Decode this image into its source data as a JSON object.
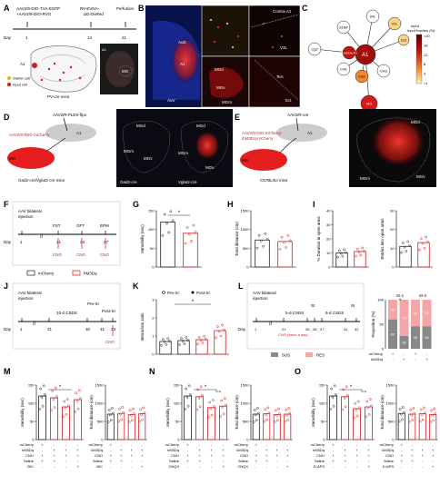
{
  "panels": {
    "A": {
      "label": "A",
      "virus1": "AAV2/9-DIO-TVA-EGFP",
      "virus2": "+AAV2/9-DIO-RVG",
      "virus3": "RV-EVNA-",
      "virus4": "ΔG-DsRed",
      "perfusion": "Perfusion",
      "day_label": "Day",
      "d1": "1",
      "d14": "14",
      "d21": "21",
      "mice": "PV-cre mice",
      "legend_starter": "Starter cell",
      "legend_input": "Input cell",
      "a1": "A1",
      "mg": "MG"
    },
    "B": {
      "label": "B",
      "aud": "AuD",
      "a1": "A1",
      "auv": "AuV",
      "contra": "Contra-A1",
      "v2l": "V2L",
      "tea": "TeA",
      "ect": "Ect",
      "mgd": "MGd",
      "mgv": "MGv",
      "mgm": "MGm"
    },
    "C": {
      "label": "C",
      "center": "A1",
      "nodes": [
        "S1BF",
        "M1",
        "V2L",
        "Ect",
        "Cg2",
        "Contra-A1",
        "CA1",
        "CA2",
        "CA3",
        "MG"
      ],
      "cbar_title": "Input fraction (%)",
      "cbar_ticks": [
        ">20",
        "16",
        "12",
        "8",
        "4",
        "<1"
      ]
    },
    "D": {
      "label": "D",
      "virus_top": "AAV2/R-FLEX-flpo",
      "virus_left": "AAV2/9-fDIO-mCherry",
      "a1": "A1",
      "mg": "MG",
      "mice": "Gad2-cre/Vglut2-cre mice",
      "img1": "Gad2-cre",
      "img2": "Vglut2-cre",
      "mgd": "MGd",
      "mgm": "MGm",
      "mgv": "MGv"
    },
    "E": {
      "label": "E",
      "virus_top": "AAV2/R-cre",
      "virus_left1": "AAV2/9-DIO-mCherry",
      "virus_left2": "/hM3Dq-mCherry",
      "a1": "A1",
      "mg": "MG",
      "mice": "C57BL/6J mice",
      "mgd": "MGd",
      "mgm": "MGm",
      "mgv": "MGv"
    },
    "F": {
      "label": "F",
      "title": "AAV bilateral injection",
      "tests": [
        "FST",
        "OFT",
        "EPM"
      ],
      "days": [
        "1",
        "21",
        "24",
        "27"
      ],
      "day": "Day",
      "cno": "CNO",
      "legend": [
        "mCherry",
        "hM3Dq"
      ]
    },
    "G": {
      "label": "G",
      "ylabel": "Immobility (sec)",
      "star": "*",
      "ticks": [
        "0",
        "50",
        "100",
        "150"
      ]
    },
    "H": {
      "label": "H",
      "ylabel": "Total distance (cm)",
      "ticks": [
        "0",
        "500",
        "1000",
        "1500"
      ]
    },
    "I": {
      "label": "I",
      "ylabel1": "% Duration in open arms",
      "ylabel2": "Entries into open arms",
      "ticks1": [
        "0",
        "10",
        "20",
        "30",
        "40"
      ],
      "ticks2": [
        "0",
        "10",
        "20",
        "30"
      ]
    },
    "J": {
      "label": "J",
      "title": "AAV bilateral injection",
      "steps": [
        "10-d CSDS",
        "Pre-SI",
        "Post-SI"
      ],
      "days": [
        "1",
        "21",
        "30",
        "31",
        "33"
      ],
      "day": "Day",
      "cno": "CNO"
    },
    "K": {
      "label": "K",
      "legend": [
        "Pre-SI",
        "Post-SI"
      ],
      "ylabel": "Interaction ratio",
      "star": "*",
      "ticks": [
        "0",
        "1",
        "2",
        "3"
      ]
    },
    "L": {
      "label": "L",
      "title": "AAV bilateral injection",
      "steps": [
        "5-d CSDS",
        "SI",
        "5-d CSDS",
        "SI"
      ],
      "cno": "CNO (twice a day)",
      "days": [
        "1",
        "21",
        "25",
        "26",
        "27",
        "31",
        "32"
      ],
      "day": "Day",
      "legend": [
        "SUS",
        "RES"
      ],
      "ylabel": "Proportion (%)",
      "groups": [
        "SI-1",
        "SI-2"
      ],
      "rows": [
        "mCherry",
        "hM3Dq"
      ],
      "star": "*"
    },
    "M": {
      "label": "M",
      "ylabel1": "Immobility (sec)",
      "ylabel2": "Total distance (cm)",
      "rows": [
        "mCherry",
        "hM3Dq",
        "CNO",
        "Saline",
        "BIC"
      ]
    },
    "N": {
      "label": "N",
      "ylabel1": "Immobility (sec)",
      "ylabel2": "Total distance (cm)",
      "rows": [
        "mCherry",
        "hM3Dq",
        "CNO",
        "Saline",
        "CNQX"
      ],
      "ns": "n.s."
    },
    "O": {
      "label": "O",
      "ylabel1": "Immobility (sec)",
      "ylabel2": "Total distance (cm)",
      "rows": [
        "mCherry",
        "hM3Dq",
        "CNO",
        "Saline",
        "D-APS"
      ],
      "ns": "n.s."
    }
  },
  "chart_data": [
    {
      "panel": "G",
      "type": "bar",
      "categories": [
        "mCherry",
        "hM3Dq"
      ],
      "values": [
        120,
        90
      ],
      "ylim": [
        0,
        150
      ],
      "ylabel": "Immobility (sec)"
    },
    {
      "panel": "H",
      "type": "bar",
      "categories": [
        "mCherry",
        "hM3Dq"
      ],
      "values": [
        720,
        680
      ],
      "ylim": [
        0,
        1500
      ],
      "ylabel": "Total distance (cm)"
    },
    {
      "panel": "I1",
      "type": "bar",
      "categories": [
        "mCherry",
        "hM3Dq"
      ],
      "values": [
        10,
        11
      ],
      "ylim": [
        0,
        40
      ],
      "ylabel": "% Duration in open arms"
    },
    {
      "panel": "I2",
      "type": "bar",
      "categories": [
        "mCherry",
        "hM3Dq"
      ],
      "values": [
        11,
        13
      ],
      "ylim": [
        0,
        30
      ],
      "ylabel": "Entries into open arms"
    },
    {
      "panel": "K",
      "type": "bar",
      "categories": [
        "mCherry Pre-SI",
        "mCherry Post-SI",
        "hM3Dq Pre-SI",
        "hM3Dq Post-SI"
      ],
      "values": [
        0.7,
        0.75,
        0.8,
        1.3
      ],
      "ylim": [
        0,
        3
      ],
      "ylabel": "Interaction ratio"
    },
    {
      "panel": "L",
      "type": "bar",
      "stacked": true,
      "categories": [
        "mCherry SI-1",
        "hM3Dq SI-1",
        "mCherry SI-2",
        "hM3Dq SI-2"
      ],
      "series": [
        {
          "name": "SUS",
          "values": [
            60,
            26,
            46,
            46
          ]
        },
        {
          "name": "RES",
          "values": [
            40,
            74,
            54,
            54
          ]
        }
      ],
      "ylim": [
        0,
        100
      ],
      "ylabel": "Proportion (%)"
    },
    {
      "panel": "M1",
      "type": "bar",
      "categories": [
        "1",
        "2",
        "3",
        "4"
      ],
      "values": [
        120,
        115,
        90,
        110
      ],
      "ylim": [
        0,
        150
      ],
      "ylabel": "Immobility (sec)"
    },
    {
      "panel": "M2",
      "type": "bar",
      "categories": [
        "1",
        "2",
        "3",
        "4"
      ],
      "values": [
        700,
        720,
        690,
        710
      ],
      "ylim": [
        0,
        1500
      ],
      "ylabel": "Total distance (cm)"
    },
    {
      "panel": "N1",
      "type": "bar",
      "categories": [
        "1",
        "2",
        "3",
        "4"
      ],
      "values": [
        120,
        118,
        88,
        92
      ],
      "ylim": [
        0,
        150
      ],
      "ylabel": "Immobility (sec)"
    },
    {
      "panel": "N2",
      "type": "bar",
      "categories": [
        "1",
        "2",
        "3",
        "4"
      ],
      "values": [
        700,
        710,
        690,
        700
      ],
      "ylim": [
        0,
        1500
      ],
      "ylabel": "Total distance (cm)"
    },
    {
      "panel": "O1",
      "type": "bar",
      "categories": [
        "1",
        "2",
        "3",
        "4"
      ],
      "values": [
        120,
        118,
        85,
        90
      ],
      "ylim": [
        0,
        150
      ],
      "ylabel": "Immobility (sec)"
    },
    {
      "panel": "O2",
      "type": "bar",
      "categories": [
        "1",
        "2",
        "3",
        "4"
      ],
      "values": [
        720,
        700,
        710,
        690
      ],
      "ylim": [
        0,
        1500
      ],
      "ylabel": "Total distance (cm)"
    }
  ],
  "colors": {
    "red": "#d7191c",
    "black": "#222222",
    "grey": "#888888",
    "pink": "#f4a6a6"
  }
}
